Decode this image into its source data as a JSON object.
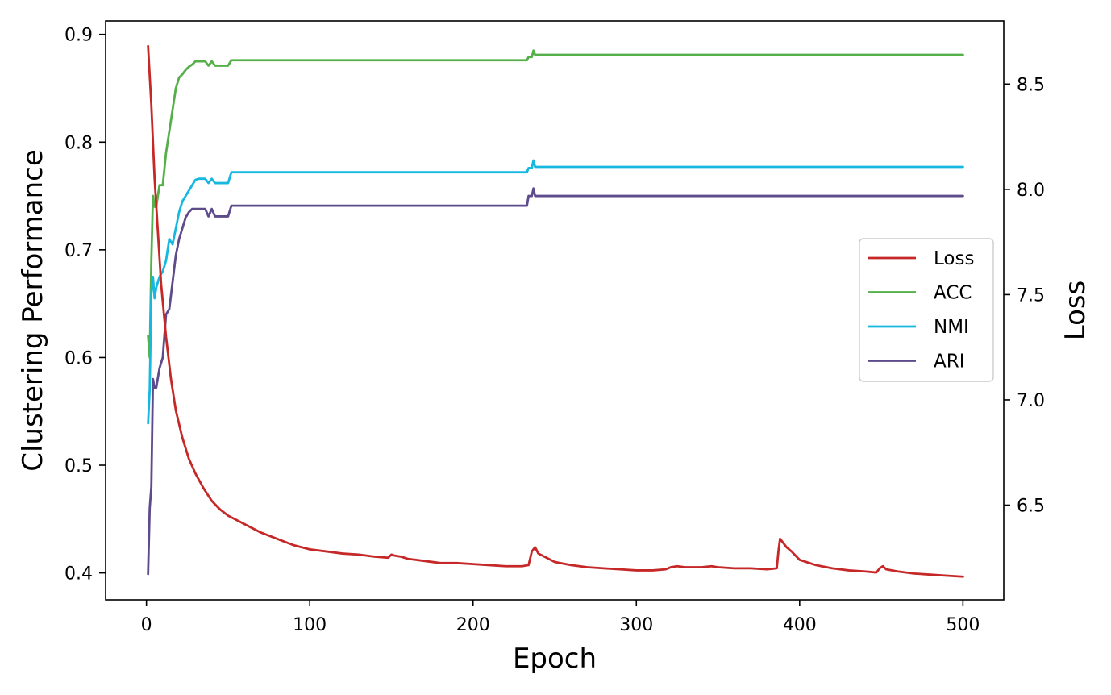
{
  "chart_data": {
    "type": "line",
    "xlabel": "Epoch",
    "ylabel": "Clustering Performance",
    "y2label": "Loss",
    "xlim": [
      -25,
      525
    ],
    "ylim": [
      0.375,
      0.9125
    ],
    "y2lim": [
      6.05,
      8.8
    ],
    "xticks": [
      0,
      100,
      200,
      300,
      400,
      500
    ],
    "yticks": [
      0.4,
      0.5,
      0.6,
      0.7,
      0.8,
      0.9
    ],
    "y2ticks": [
      6.5,
      7.0,
      7.5,
      8.0,
      8.5
    ],
    "grid": false,
    "legend_position": "center-right",
    "legend": [
      "Loss",
      "ACC",
      "NMI",
      "ARI"
    ],
    "series": [
      {
        "name": "Loss",
        "axis": "right",
        "color": "#c62828",
        "x": [
          1,
          3,
          5,
          7,
          9,
          12,
          15,
          18,
          22,
          26,
          30,
          35,
          40,
          45,
          50,
          60,
          70,
          80,
          90,
          100,
          110,
          120,
          130,
          140,
          148,
          150,
          152,
          156,
          160,
          170,
          180,
          190,
          200,
          210,
          220,
          230,
          234,
          236,
          238,
          240,
          245,
          250,
          260,
          270,
          280,
          290,
          300,
          310,
          318,
          321,
          325,
          330,
          340,
          346,
          350,
          360,
          370,
          380,
          386,
          387,
          388,
          390,
          392,
          395,
          400,
          410,
          420,
          430,
          440,
          447,
          449,
          451,
          453,
          460,
          470,
          480,
          490,
          500
        ],
        "values": [
          8.68,
          8.4,
          8.05,
          7.8,
          7.55,
          7.3,
          7.1,
          6.95,
          6.82,
          6.72,
          6.65,
          6.58,
          6.52,
          6.48,
          6.45,
          6.41,
          6.37,
          6.34,
          6.31,
          6.29,
          6.28,
          6.27,
          6.265,
          6.255,
          6.25,
          6.265,
          6.26,
          6.255,
          6.245,
          6.235,
          6.225,
          6.225,
          6.22,
          6.215,
          6.21,
          6.21,
          6.215,
          6.28,
          6.3,
          6.27,
          6.25,
          6.23,
          6.215,
          6.205,
          6.2,
          6.195,
          6.19,
          6.19,
          6.195,
          6.205,
          6.21,
          6.205,
          6.205,
          6.21,
          6.205,
          6.2,
          6.2,
          6.195,
          6.2,
          6.28,
          6.34,
          6.32,
          6.3,
          6.28,
          6.24,
          6.215,
          6.2,
          6.19,
          6.185,
          6.18,
          6.2,
          6.21,
          6.195,
          6.185,
          6.175,
          6.17,
          6.165,
          6.16
        ]
      },
      {
        "name": "ACC",
        "axis": "left",
        "color": "#55b04a",
        "x": [
          1,
          2,
          3,
          4,
          5,
          6,
          8,
          10,
          12,
          14,
          16,
          18,
          20,
          22,
          24,
          26,
          28,
          30,
          32,
          36,
          38,
          40,
          42,
          50,
          52,
          100,
          150,
          200,
          233,
          234,
          236,
          237,
          238,
          240,
          300,
          400,
          500
        ],
        "values": [
          0.62,
          0.6,
          0.69,
          0.75,
          0.74,
          0.74,
          0.76,
          0.76,
          0.79,
          0.81,
          0.83,
          0.85,
          0.86,
          0.863,
          0.867,
          0.87,
          0.872,
          0.875,
          0.875,
          0.875,
          0.871,
          0.875,
          0.871,
          0.871,
          0.876,
          0.876,
          0.876,
          0.876,
          0.876,
          0.879,
          0.879,
          0.885,
          0.881,
          0.881,
          0.881,
          0.881,
          0.881
        ]
      },
      {
        "name": "NMI",
        "axis": "left",
        "color": "#17b8e0",
        "x": [
          1,
          2,
          3,
          4,
          5,
          6,
          8,
          10,
          12,
          14,
          16,
          18,
          20,
          22,
          24,
          26,
          28,
          30,
          32,
          36,
          38,
          40,
          42,
          50,
          52,
          100,
          150,
          200,
          233,
          234,
          236,
          237,
          238,
          240,
          300,
          400,
          500
        ],
        "values": [
          0.539,
          0.57,
          0.66,
          0.675,
          0.655,
          0.665,
          0.675,
          0.68,
          0.69,
          0.71,
          0.705,
          0.72,
          0.735,
          0.745,
          0.75,
          0.755,
          0.76,
          0.765,
          0.766,
          0.766,
          0.762,
          0.766,
          0.762,
          0.762,
          0.772,
          0.772,
          0.772,
          0.772,
          0.772,
          0.776,
          0.776,
          0.783,
          0.777,
          0.777,
          0.777,
          0.777,
          0.777
        ]
      },
      {
        "name": "ARI",
        "axis": "left",
        "color": "#5e4b8b",
        "x": [
          1,
          2,
          3,
          4,
          5,
          6,
          8,
          10,
          12,
          14,
          16,
          18,
          20,
          22,
          24,
          26,
          28,
          30,
          32,
          36,
          38,
          40,
          42,
          50,
          52,
          100,
          150,
          200,
          233,
          234,
          236,
          237,
          238,
          240,
          300,
          400,
          500
        ],
        "values": [
          0.399,
          0.46,
          0.48,
          0.58,
          0.572,
          0.572,
          0.59,
          0.6,
          0.64,
          0.645,
          0.67,
          0.695,
          0.71,
          0.72,
          0.73,
          0.735,
          0.738,
          0.738,
          0.738,
          0.738,
          0.731,
          0.738,
          0.731,
          0.731,
          0.741,
          0.741,
          0.741,
          0.741,
          0.741,
          0.75,
          0.75,
          0.757,
          0.75,
          0.75,
          0.75,
          0.75,
          0.75
        ]
      }
    ]
  }
}
